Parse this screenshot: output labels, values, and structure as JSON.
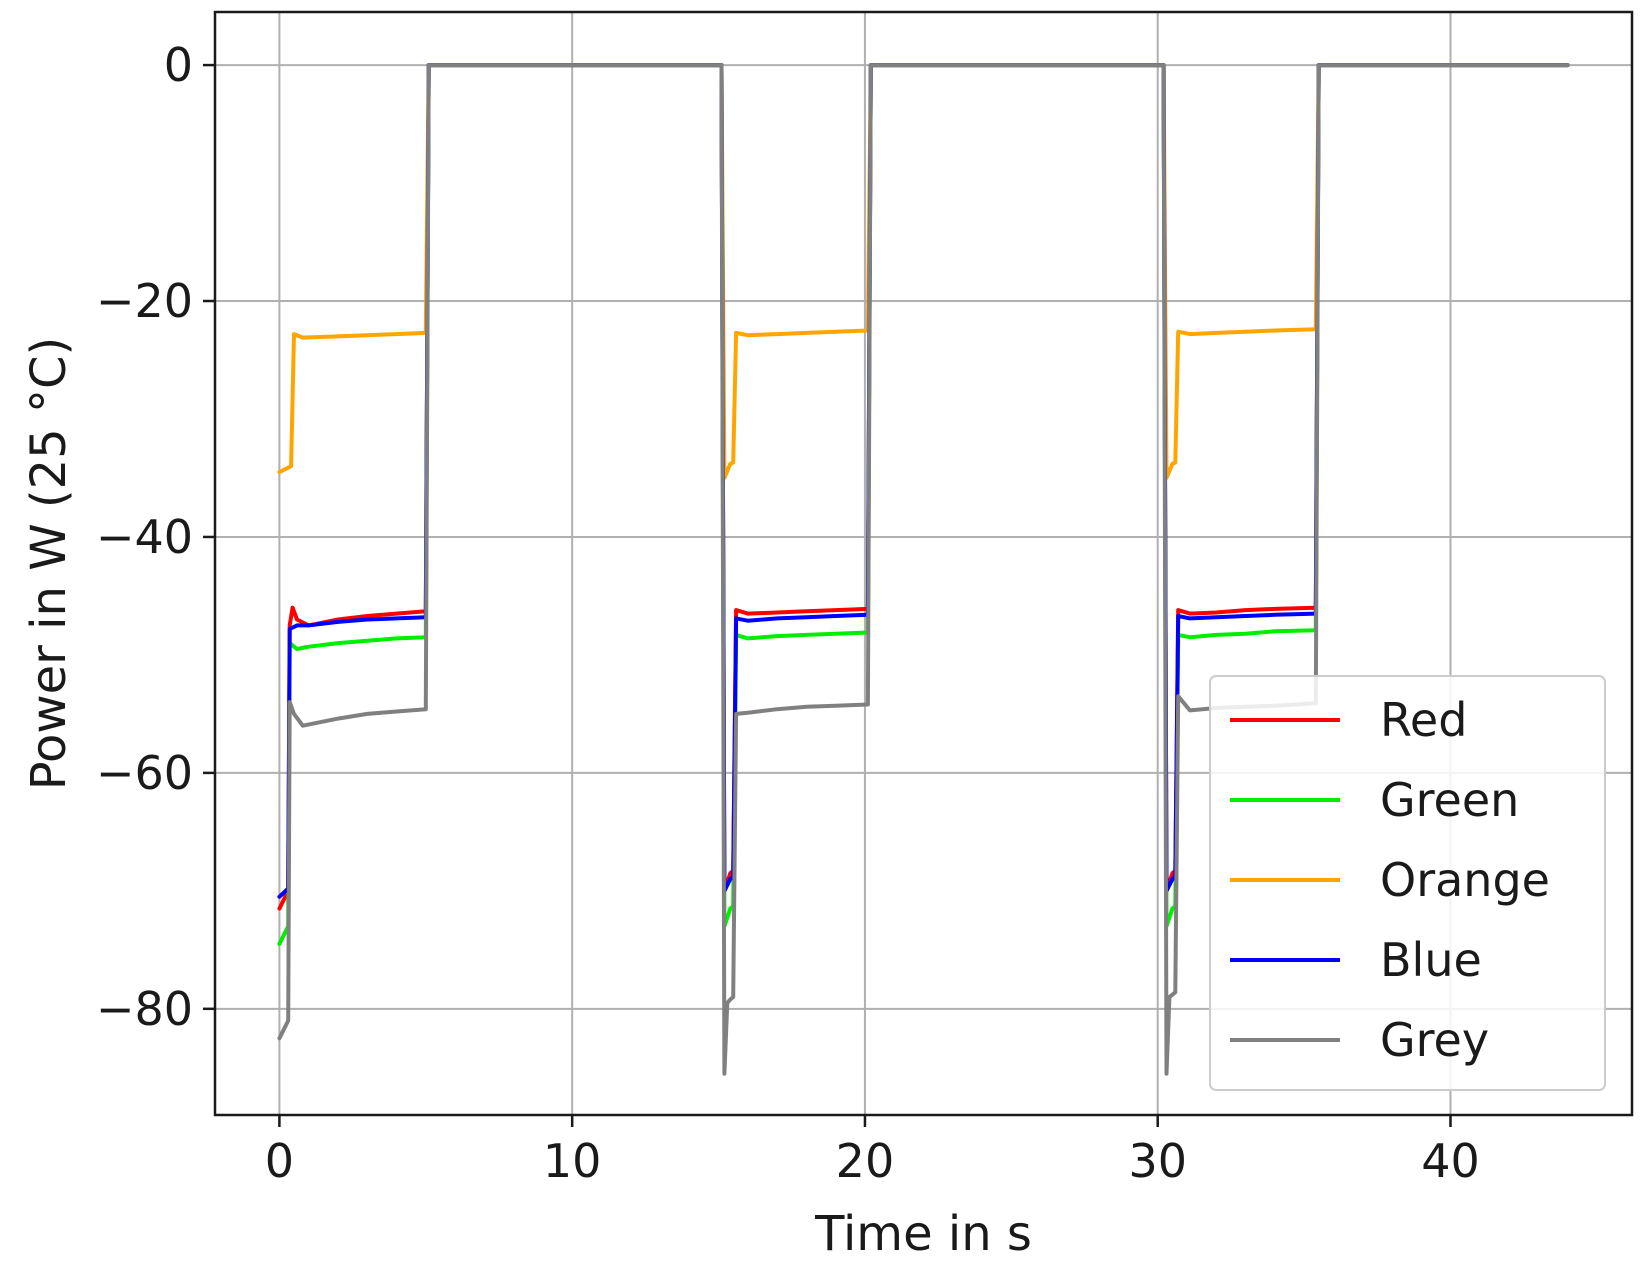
{
  "chart_data": {
    "type": "line",
    "xlabel": "Time in s",
    "ylabel": "Power in W (25 °C)",
    "xlim": [
      -2.2,
      46.2
    ],
    "ylim": [
      -89,
      4.5
    ],
    "xticks": [
      0,
      10,
      20,
      30,
      40
    ],
    "yticks": [
      0,
      -20,
      -40,
      -60,
      -80
    ],
    "xtick_labels": [
      "0",
      "10",
      "20",
      "30",
      "40"
    ],
    "ytick_labels": [
      "0",
      "−20",
      "−40",
      "−60",
      "−80"
    ],
    "grid": true,
    "legend_position": "lower-right",
    "series": [
      {
        "name": "Red",
        "color": "#ff0000",
        "x": [
          0,
          0.3,
          0.35,
          0.45,
          0.6,
          1,
          2,
          3,
          4,
          5.0,
          5.1,
          15.1,
          15.2,
          15.4,
          15.5,
          15.6,
          16.0,
          17,
          18,
          19,
          20.1,
          20.2,
          30.2,
          30.3,
          30.5,
          30.6,
          30.7,
          31.1,
          32,
          33,
          34,
          35.4,
          35.5,
          44
        ],
        "y": [
          -71.5,
          -70,
          -47.5,
          -46,
          -47,
          -47.5,
          -47,
          -46.7,
          -46.5,
          -46.3,
          0,
          0,
          -70,
          -68.5,
          -68.3,
          -46.2,
          -46.5,
          -46.4,
          -46.3,
          -46.2,
          -46.1,
          0,
          0,
          -70,
          -68.5,
          -68.3,
          -46.2,
          -46.5,
          -46.4,
          -46.2,
          -46.1,
          -46.0,
          0,
          0
        ]
      },
      {
        "name": "Green",
        "color": "#00ee00",
        "x": [
          0,
          0.3,
          0.35,
          0.6,
          1,
          2,
          3,
          4,
          5.0,
          5.1,
          15.1,
          15.2,
          15.4,
          15.5,
          15.6,
          16.0,
          17,
          18,
          19,
          20.1,
          20.2,
          30.2,
          30.3,
          30.5,
          30.6,
          30.7,
          31.1,
          32,
          33,
          34,
          35.4,
          35.5,
          44
        ],
        "y": [
          -74.5,
          -73,
          -49,
          -49.5,
          -49.3,
          -49,
          -48.8,
          -48.6,
          -48.5,
          0,
          0,
          -73,
          -71.5,
          -71.3,
          -48.3,
          -48.6,
          -48.4,
          -48.3,
          -48.2,
          -48.1,
          0,
          0,
          -73,
          -71.5,
          -71.3,
          -48.3,
          -48.5,
          -48.3,
          -48.2,
          -48.0,
          -47.9,
          0,
          0
        ]
      },
      {
        "name": "Orange",
        "color": "#ffa500",
        "x": [
          0,
          0.4,
          0.5,
          0.8,
          2,
          3,
          4,
          5.0,
          5.1,
          15.1,
          15.2,
          15.4,
          15.5,
          15.6,
          16.0,
          17,
          18,
          19,
          20.1,
          20.2,
          30.2,
          30.3,
          30.5,
          30.6,
          30.7,
          31.1,
          32,
          33,
          34,
          35.4,
          35.5,
          44
        ],
        "y": [
          -34.5,
          -34,
          -22.8,
          -23.1,
          -23,
          -22.9,
          -22.8,
          -22.7,
          0,
          0,
          -35,
          -33.8,
          -33.7,
          -22.7,
          -22.9,
          -22.8,
          -22.7,
          -22.6,
          -22.5,
          0,
          0,
          -35,
          -33.8,
          -33.7,
          -22.6,
          -22.8,
          -22.7,
          -22.6,
          -22.5,
          -22.4,
          0,
          0
        ]
      },
      {
        "name": "Blue",
        "color": "#0000ff",
        "x": [
          0,
          0.3,
          0.35,
          0.6,
          1,
          2,
          3,
          4,
          5.0,
          5.1,
          15.1,
          15.2,
          15.4,
          15.5,
          15.6,
          16.0,
          17,
          18,
          19,
          20.1,
          20.2,
          30.2,
          30.3,
          30.5,
          30.6,
          30.7,
          31.1,
          32,
          33,
          34,
          35.4,
          35.5,
          44
        ],
        "y": [
          -70.5,
          -69.8,
          -47.8,
          -47.5,
          -47.5,
          -47.2,
          -47.0,
          -46.9,
          -46.8,
          0,
          0,
          -70,
          -69,
          -68.8,
          -46.9,
          -47.1,
          -46.9,
          -46.8,
          -46.7,
          -46.6,
          0,
          0,
          -70,
          -69,
          -68.8,
          -46.7,
          -46.9,
          -46.8,
          -46.7,
          -46.6,
          -46.5,
          0,
          0
        ]
      },
      {
        "name": "Grey",
        "color": "#808080",
        "x": [
          0,
          0.3,
          0.35,
          0.5,
          0.8,
          2,
          3,
          4,
          5.0,
          5.1,
          15.1,
          15.2,
          15.3,
          15.4,
          15.5,
          15.6,
          16.0,
          17,
          18,
          19,
          20.1,
          20.2,
          30.2,
          30.3,
          30.4,
          30.5,
          30.6,
          30.7,
          31.1,
          32,
          33,
          34,
          35.4,
          35.5,
          44
        ],
        "y": [
          -82.5,
          -81,
          -54,
          -55,
          -56,
          -55.4,
          -55.0,
          -54.8,
          -54.6,
          0,
          0,
          -85.5,
          -79.5,
          -79.2,
          -79,
          -55,
          -54.9,
          -54.6,
          -54.4,
          -54.3,
          -54.2,
          0,
          0,
          -85.5,
          -79.0,
          -78.8,
          -78.6,
          -53.5,
          -54.7,
          -54.5,
          -54.4,
          -54.3,
          -54.1,
          0,
          0
        ]
      }
    ]
  }
}
